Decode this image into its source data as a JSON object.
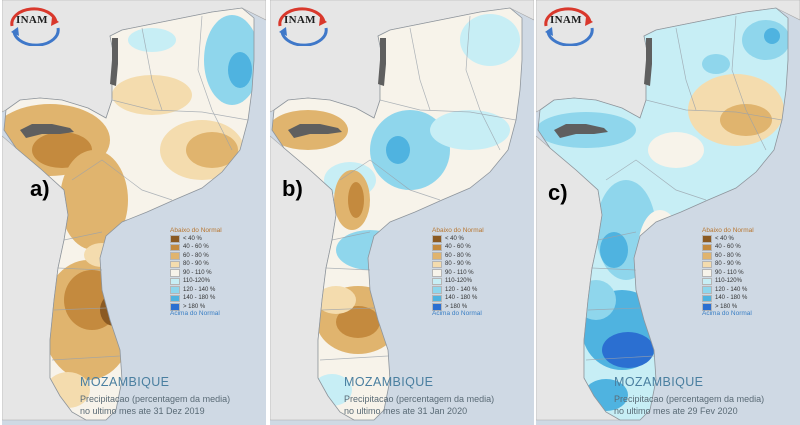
{
  "logo": {
    "text": "INAM"
  },
  "panels": [
    {
      "letter": "a)",
      "caption": {
        "country": "MOZAMBIQUE",
        "line1": "Precipitacao (percentagem da media)",
        "line2": "no ultimo mes ate 31 Dez 2019"
      }
    },
    {
      "letter": "b)",
      "caption": {
        "country": "MOZAMBIQUE",
        "line1": "Precipitacao (percentagem da media)",
        "line2": "no ultimo mes ate 31 Jan 2020"
      }
    },
    {
      "letter": "c)",
      "caption": {
        "country": "MOZAMBIQUE",
        "line1": "Precipitacao (percentagem da media)",
        "line2": "no ultimo mes ate 29 Fev 2020"
      }
    }
  ],
  "legend": {
    "header_below": "Abaixo do Normal",
    "header_above": "Acima do Normal",
    "classes": [
      {
        "label": "< 40 %",
        "color": "#8b5a22"
      },
      {
        "label": "40 - 60 %",
        "color": "#c48a3e"
      },
      {
        "label": "60 - 80 %",
        "color": "#e0b46e"
      },
      {
        "label": "80 - 90 %",
        "color": "#f4dcae"
      },
      {
        "label": "90 - 110 %",
        "color": "#f7f3ea"
      },
      {
        "label": "110-120%",
        "color": "#c7eef5"
      },
      {
        "label": "120 - 140 %",
        "color": "#8fd6ec"
      },
      {
        "label": "140 - 180 %",
        "color": "#4fb3e0"
      },
      {
        "label": "> 180 %",
        "color": "#2b6fd1"
      }
    ]
  },
  "colors": {
    "sea": "#cfd9e4",
    "land_neighbor": "#e6e6e6",
    "lake": "#5f5f5f",
    "border": "#9aa2ab"
  }
}
